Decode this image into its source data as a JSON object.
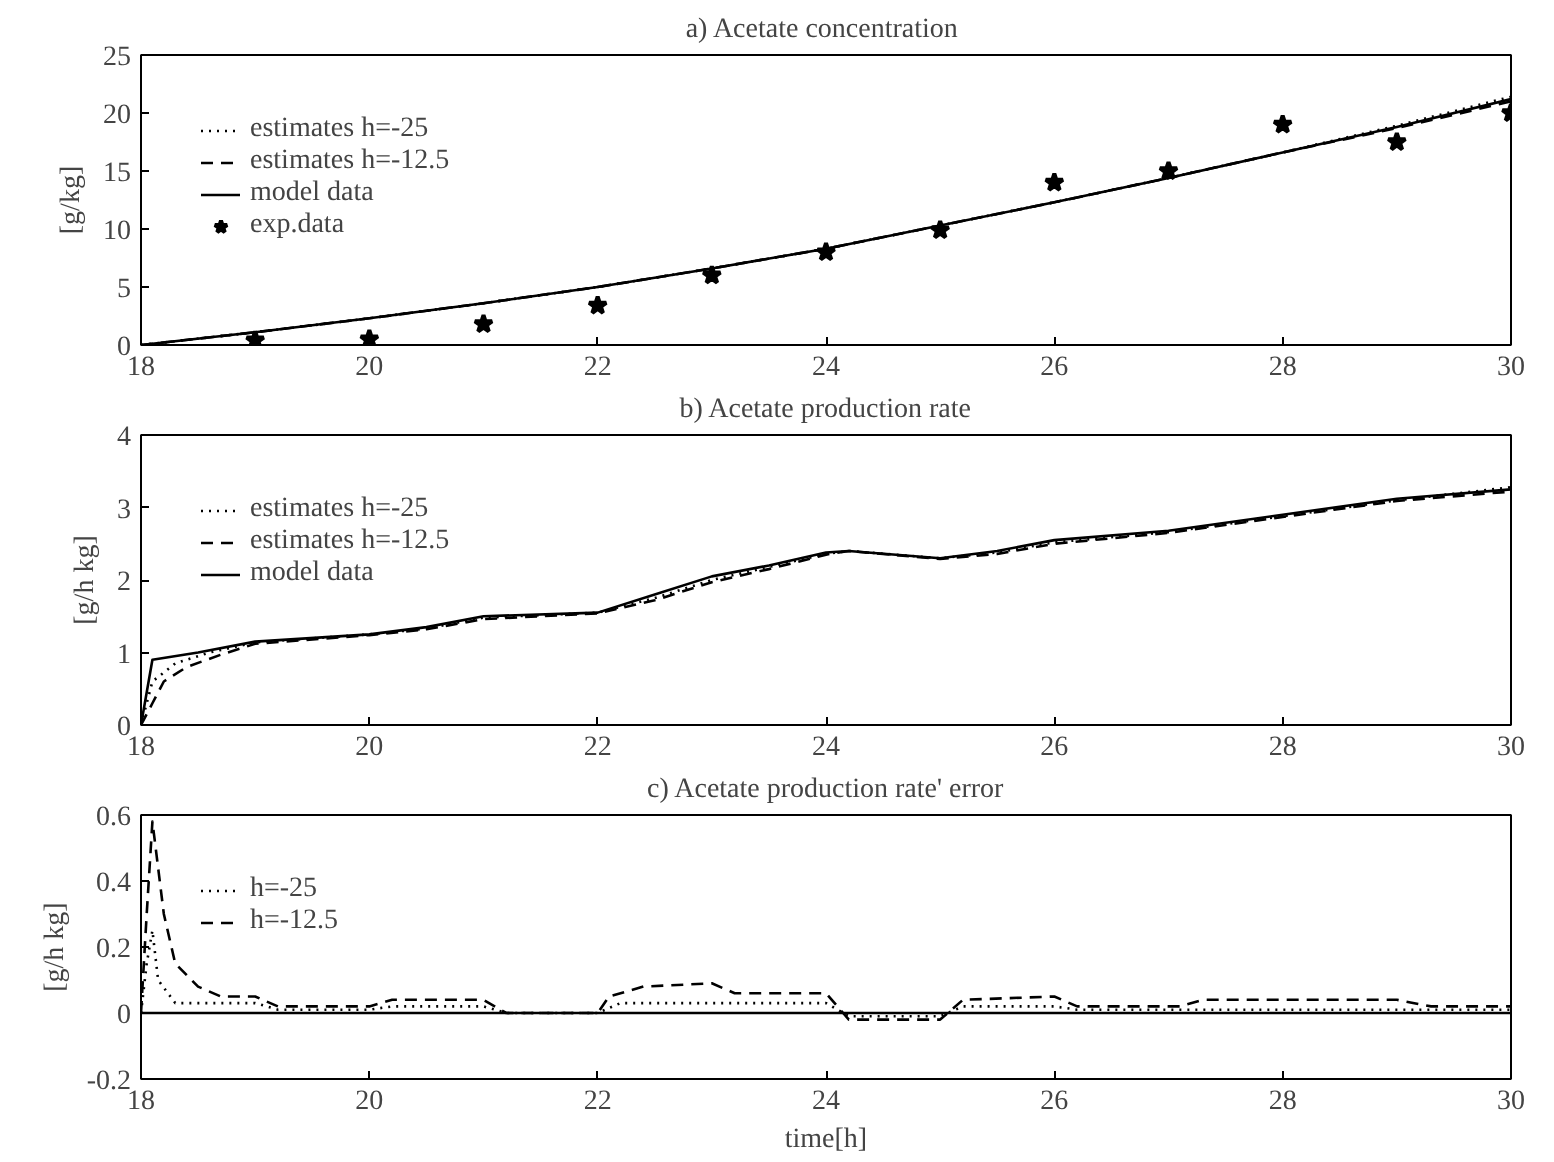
{
  "chart_data": [
    {
      "type": "line",
      "title": "a) Acetate  concentration",
      "ylabel": "[g/kg]",
      "xlim": [
        18,
        30
      ],
      "xticks": [
        18,
        20,
        22,
        24,
        26,
        28,
        30
      ],
      "ylim": [
        0,
        25
      ],
      "yticks": [
        0,
        5,
        10,
        15,
        20,
        25
      ],
      "grid": false,
      "legend": "top left",
      "series": [
        {
          "name": "estimates h=-25",
          "color": "#000000",
          "line_style": "dotted",
          "x": [
            18,
            19,
            20,
            21,
            22,
            23,
            24,
            25,
            26,
            27,
            28,
            29,
            30
          ],
          "values": [
            0,
            1.1,
            2.3,
            3.6,
            5.0,
            6.6,
            8.3,
            10.3,
            12.3,
            14.4,
            16.6,
            18.9,
            21.4
          ]
        },
        {
          "name": "estimates h=-12.5",
          "color": "#000000",
          "line_style": "dashed",
          "x": [
            18,
            19,
            20,
            21,
            22,
            23,
            24,
            25,
            26,
            27,
            28,
            29,
            30
          ],
          "values": [
            0,
            1.1,
            2.3,
            3.6,
            5.0,
            6.6,
            8.3,
            10.3,
            12.3,
            14.4,
            16.6,
            18.7,
            21.0
          ]
        },
        {
          "name": "model data",
          "color": "#000000",
          "line_style": "solid",
          "x": [
            18,
            19,
            20,
            21,
            22,
            23,
            24,
            25,
            26,
            27,
            28,
            29,
            30
          ],
          "values": [
            0,
            1.1,
            2.3,
            3.6,
            5.0,
            6.6,
            8.3,
            10.3,
            12.3,
            14.4,
            16.6,
            18.8,
            21.2
          ]
        },
        {
          "name": "exp.data",
          "type": "scatter",
          "marker": "star",
          "color": "#000000",
          "x": [
            19,
            20,
            21,
            22,
            23,
            24,
            25,
            26,
            27,
            28,
            29,
            30
          ],
          "values": [
            0.4,
            0.5,
            1.8,
            3.4,
            6.0,
            8.0,
            9.9,
            14.0,
            15.0,
            19.0,
            17.5,
            20.0
          ]
        }
      ]
    },
    {
      "type": "line",
      "title": "b) Acetate production rate",
      "ylabel": "[g/h kg]",
      "xlim": [
        18,
        30
      ],
      "xticks": [
        18,
        20,
        22,
        24,
        26,
        28,
        30
      ],
      "ylim": [
        0,
        4
      ],
      "yticks": [
        0,
        1,
        2,
        3,
        4
      ],
      "grid": false,
      "legend": "top left",
      "series": [
        {
          "name": "estimates h=-25",
          "color": "#000000",
          "line_style": "dotted",
          "x": [
            18,
            18.1,
            18.3,
            18.6,
            19,
            20,
            20.5,
            21,
            22,
            22.5,
            23,
            23.5,
            24,
            24.2,
            25,
            25.5,
            26,
            27,
            28,
            29,
            30
          ],
          "values": [
            0,
            0.6,
            0.85,
            1.0,
            1.14,
            1.25,
            1.33,
            1.48,
            1.55,
            1.75,
            2.0,
            2.18,
            2.36,
            2.4,
            2.3,
            2.38,
            2.52,
            2.66,
            2.88,
            3.1,
            3.28
          ]
        },
        {
          "name": "estimates h=-12.5",
          "color": "#000000",
          "line_style": "dashed",
          "x": [
            18,
            18.1,
            18.2,
            18.4,
            18.7,
            19,
            20,
            20.5,
            21,
            22,
            22.5,
            23,
            23.5,
            24,
            24.2,
            25,
            25.5,
            26,
            27,
            28,
            29,
            30
          ],
          "values": [
            0,
            0.3,
            0.6,
            0.8,
            0.97,
            1.12,
            1.24,
            1.32,
            1.46,
            1.54,
            1.72,
            1.97,
            2.15,
            2.35,
            2.4,
            2.29,
            2.36,
            2.5,
            2.65,
            2.87,
            3.09,
            3.22
          ]
        },
        {
          "name": "model data",
          "color": "#000000",
          "line_style": "solid",
          "x": [
            18,
            18.1,
            18.5,
            19,
            20,
            20.5,
            21,
            22,
            22.5,
            23,
            23.5,
            24,
            24.2,
            25,
            25.5,
            26,
            27,
            28,
            29,
            30
          ],
          "values": [
            0,
            0.9,
            1.0,
            1.15,
            1.25,
            1.35,
            1.5,
            1.55,
            1.8,
            2.05,
            2.2,
            2.38,
            2.4,
            2.3,
            2.4,
            2.55,
            2.68,
            2.9,
            3.12,
            3.25
          ]
        }
      ]
    },
    {
      "type": "line",
      "title": "c) Acetate production rate' error",
      "xlabel": "time[h]",
      "ylabel": "[g/h kg]",
      "xlim": [
        18,
        30
      ],
      "xticks": [
        18,
        20,
        22,
        24,
        26,
        28,
        30
      ],
      "ylim": [
        -0.2,
        0.6
      ],
      "yticks": [
        -0.2,
        0,
        0.2,
        0.4,
        0.6
      ],
      "grid": false,
      "legend": "top left",
      "ref_lines": [
        {
          "axis": "y",
          "value": 0,
          "line_style": "solid",
          "color": "#000000"
        }
      ],
      "series": [
        {
          "name": "h=-25",
          "color": "#000000",
          "line_style": "dotted",
          "x": [
            18,
            18.05,
            18.1,
            18.15,
            18.3,
            19,
            19.2,
            20,
            20.2,
            21,
            21.2,
            22,
            22.2,
            24,
            24.2,
            25,
            25.2,
            26,
            26.2,
            30
          ],
          "values": [
            0,
            0.15,
            0.25,
            0.1,
            0.03,
            0.03,
            0.01,
            0.01,
            0.02,
            0.02,
            0,
            0,
            0.03,
            0.03,
            -0.01,
            -0.01,
            0.02,
            0.02,
            0.01,
            0.01
          ]
        },
        {
          "name": "h=-12.5",
          "color": "#000000",
          "line_style": "dashed",
          "x": [
            18,
            18.05,
            18.1,
            18.2,
            18.3,
            18.5,
            18.7,
            19,
            19.2,
            20,
            20.2,
            21,
            21.2,
            22,
            22.1,
            22.4,
            23,
            23.2,
            24,
            24.2,
            25,
            25.2,
            26,
            26.2,
            27.1,
            27.3,
            29,
            29.3,
            30
          ],
          "values": [
            0,
            0.3,
            0.58,
            0.3,
            0.15,
            0.08,
            0.05,
            0.05,
            0.02,
            0.02,
            0.04,
            0.04,
            0.0,
            0.0,
            0.05,
            0.08,
            0.09,
            0.06,
            0.06,
            -0.02,
            -0.02,
            0.04,
            0.05,
            0.02,
            0.02,
            0.04,
            0.04,
            0.02,
            0.02
          ]
        }
      ]
    }
  ]
}
